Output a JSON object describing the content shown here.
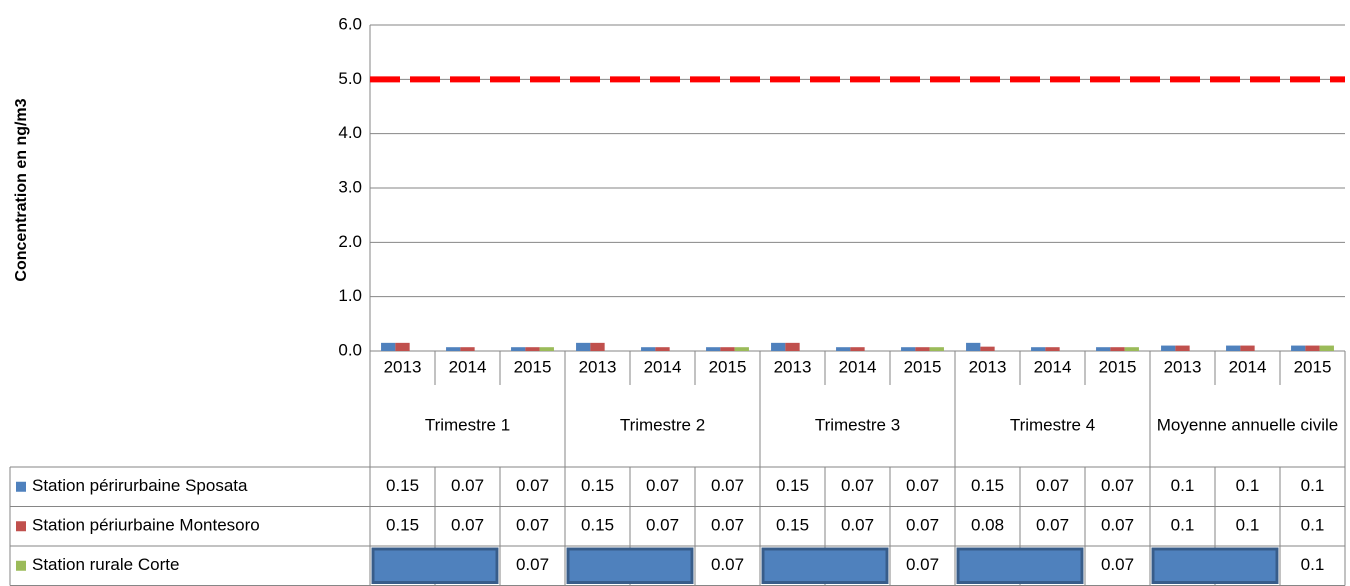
{
  "chart_data": {
    "type": "bar",
    "y_axis_label": "Concentration en ng/m3",
    "categories": [
      "2013",
      "2014",
      "2015",
      "2013",
      "2014",
      "2015",
      "2013",
      "2014",
      "2015",
      "2013",
      "2014",
      "2015",
      "2013",
      "2014",
      "2015"
    ],
    "groups": [
      "Trimestre 1",
      "Trimestre 2",
      "Trimestre 3",
      "Trimestre 4",
      "Moyenne annuelle civile"
    ],
    "series": [
      {
        "name": "Station périrurbaine Sposata",
        "color": "#4f81bd",
        "values": [
          0.15,
          0.07,
          0.07,
          0.15,
          0.07,
          0.07,
          0.15,
          0.07,
          0.07,
          0.15,
          0.07,
          0.07,
          0.1,
          0.1,
          0.1
        ]
      },
      {
        "name": "Station périurbaine Montesoro",
        "color": "#c0504d",
        "values": [
          0.15,
          0.07,
          0.07,
          0.15,
          0.07,
          0.07,
          0.15,
          0.07,
          0.07,
          0.08,
          0.07,
          0.07,
          0.1,
          0.1,
          0.1
        ]
      },
      {
        "name": "Station rurale Corte",
        "color": "#9bbb59",
        "values": [
          null,
          null,
          0.07,
          null,
          null,
          0.07,
          null,
          null,
          0.07,
          null,
          null,
          0.07,
          null,
          null,
          0.1
        ]
      }
    ],
    "reference_line": {
      "value": 5,
      "color": "#ff0000"
    },
    "ylim": [
      0,
      6
    ],
    "yticks": [
      {
        "value": 0,
        "label": "0.0"
      },
      {
        "value": 1,
        "label": "1.0"
      },
      {
        "value": 2,
        "label": "2.0"
      },
      {
        "value": 3,
        "label": "3.0"
      },
      {
        "value": 4,
        "label": "4.0"
      },
      {
        "value": 5,
        "label": "5.0"
      },
      {
        "value": 6,
        "label": "6.0"
      }
    ],
    "grid": true,
    "data_table": true
  }
}
